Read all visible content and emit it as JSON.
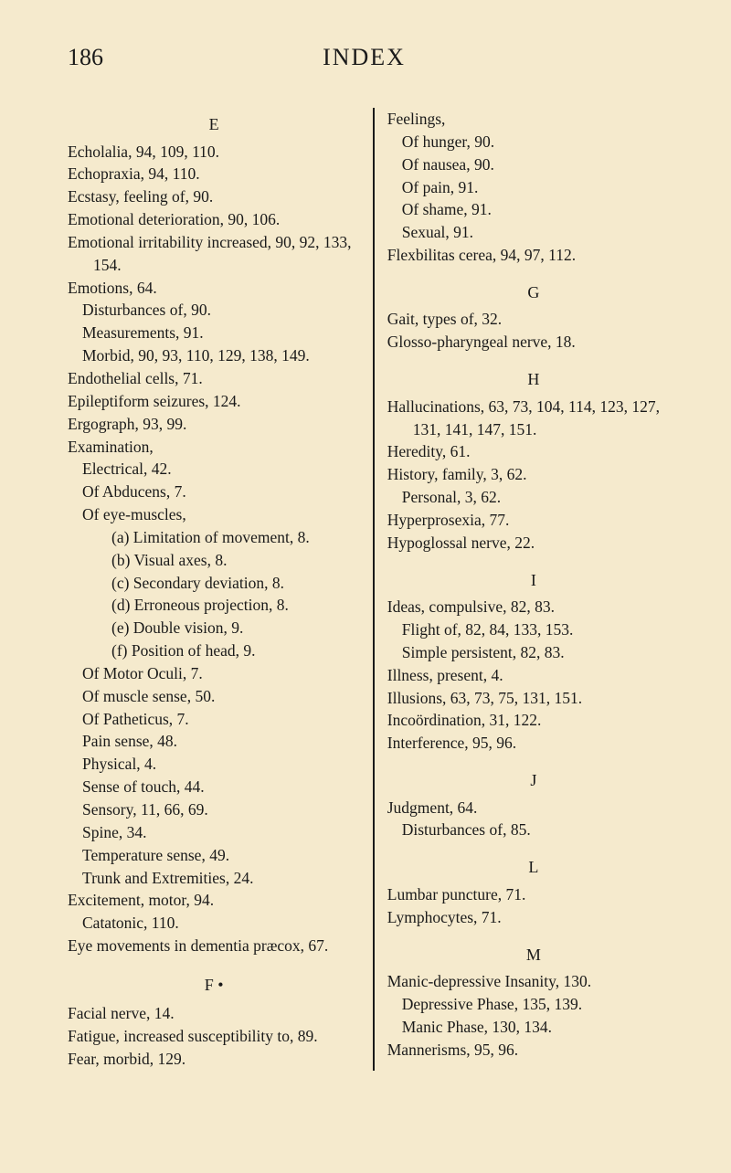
{
  "page": {
    "number": "186",
    "title": "INDEX",
    "background_color": "#f5eacd",
    "text_color": "#1a1a1a",
    "font_family": "Georgia, Times New Roman, serif",
    "body_fontsize": 17.5,
    "heading_fontsize": 26
  },
  "left": {
    "heading_E": "E",
    "entries_E": [
      {
        "t": "Echolalia, 94, 109, 110.",
        "l": 0
      },
      {
        "t": "Echopraxia, 94, 110.",
        "l": 0
      },
      {
        "t": "Ecstasy, feeling of, 90.",
        "l": 0
      },
      {
        "t": "Emotional deterioration, 90, 106.",
        "l": 0
      },
      {
        "t": "Emotional irritability increased, 90, 92, 133, 154.",
        "l": 0
      },
      {
        "t": "Emotions, 64.",
        "l": 0
      },
      {
        "t": "Disturbances of, 90.",
        "l": 1
      },
      {
        "t": "Measurements, 91.",
        "l": 1
      },
      {
        "t": "Morbid, 90, 93, 110, 129, 138, 149.",
        "l": 1
      },
      {
        "t": "Endothelial cells, 71.",
        "l": 0
      },
      {
        "t": "Epileptiform seizures, 124.",
        "l": 0
      },
      {
        "t": "Ergograph, 93, 99.",
        "l": 0
      },
      {
        "t": "Examination,",
        "l": 0
      },
      {
        "t": "Electrical, 42.",
        "l": 1
      },
      {
        "t": "Of Abducens, 7.",
        "l": 1
      },
      {
        "t": "Of eye-muscles,",
        "l": 1
      },
      {
        "t": "(a) Limitation of movement, 8.",
        "l": 2
      },
      {
        "t": "(b) Visual axes, 8.",
        "l": 2
      },
      {
        "t": "(c) Secondary deviation, 8.",
        "l": 2
      },
      {
        "t": "(d) Erroneous projection, 8.",
        "l": 2
      },
      {
        "t": "(e) Double vision, 9.",
        "l": 2
      },
      {
        "t": "(f) Position of head, 9.",
        "l": 2
      },
      {
        "t": "Of Motor Oculi, 7.",
        "l": 1
      },
      {
        "t": "Of muscle sense, 50.",
        "l": 1
      },
      {
        "t": "Of Patheticus, 7.",
        "l": 1
      },
      {
        "t": "Pain sense, 48.",
        "l": 1
      },
      {
        "t": "Physical, 4.",
        "l": 1
      },
      {
        "t": "Sense of touch, 44.",
        "l": 1
      },
      {
        "t": "Sensory, 11, 66, 69.",
        "l": 1
      },
      {
        "t": "Spine, 34.",
        "l": 1
      },
      {
        "t": "Temperature sense, 49.",
        "l": 1
      },
      {
        "t": "Trunk and Extremities, 24.",
        "l": 1
      },
      {
        "t": "Excitement, motor, 94.",
        "l": 0
      },
      {
        "t": "Catatonic, 110.",
        "l": 1
      },
      {
        "t": "Eye movements in dementia præcox, 67.",
        "l": 0
      }
    ],
    "heading_F": "F   •",
    "entries_F": [
      {
        "t": "Facial nerve, 14.",
        "l": 0
      },
      {
        "t": "Fatigue, increased susceptibility to, 89.",
        "l": 0
      },
      {
        "t": "Fear, morbid, 129.",
        "l": 0
      }
    ]
  },
  "right": {
    "entries_top": [
      {
        "t": "Feelings,",
        "l": 0
      },
      {
        "t": "Of hunger, 90.",
        "l": 1
      },
      {
        "t": "Of nausea, 90.",
        "l": 1
      },
      {
        "t": "Of pain, 91.",
        "l": 1
      },
      {
        "t": "Of shame, 91.",
        "l": 1
      },
      {
        "t": "Sexual, 91.",
        "l": 1
      },
      {
        "t": "Flexbilitas cerea, 94, 97, 112.",
        "l": 0
      }
    ],
    "heading_G": "G",
    "entries_G": [
      {
        "t": "Gait, types of, 32.",
        "l": 0
      },
      {
        "t": "Glosso-pharyngeal nerve, 18.",
        "l": 0
      }
    ],
    "heading_H": "H",
    "entries_H": [
      {
        "t": "Hallucinations, 63, 73, 104, 114, 123, 127, 131, 141, 147, 151.",
        "l": 0
      },
      {
        "t": "Heredity, 61.",
        "l": 0
      },
      {
        "t": "History, family, 3, 62.",
        "l": 0
      },
      {
        "t": "Personal, 3, 62.",
        "l": 1
      },
      {
        "t": "Hyperprosexia, 77.",
        "l": 0
      },
      {
        "t": "Hypoglossal nerve, 22.",
        "l": 0
      }
    ],
    "heading_I": "I",
    "entries_I": [
      {
        "t": "Ideas, compulsive, 82, 83.",
        "l": 0
      },
      {
        "t": "Flight of, 82, 84, 133, 153.",
        "l": 1
      },
      {
        "t": "Simple persistent, 82, 83.",
        "l": 1
      },
      {
        "t": "Illness, present, 4.",
        "l": 0
      },
      {
        "t": "Illusions, 63, 73, 75, 131, 151.",
        "l": 0
      },
      {
        "t": "Incoördination, 31, 122.",
        "l": 0
      },
      {
        "t": "Interference, 95, 96.",
        "l": 0
      }
    ],
    "heading_J": "J",
    "entries_J": [
      {
        "t": "Judgment, 64.",
        "l": 0
      },
      {
        "t": "Disturbances of, 85.",
        "l": 1
      }
    ],
    "heading_L": "L",
    "entries_L": [
      {
        "t": "Lumbar puncture, 71.",
        "l": 0
      },
      {
        "t": "Lymphocytes, 71.",
        "l": 0
      }
    ],
    "heading_M": "M",
    "entries_M": [
      {
        "t": "Manic-depressive Insanity, 130.",
        "l": 0
      },
      {
        "t": "Depressive Phase, 135, 139.",
        "l": 1
      },
      {
        "t": "Manic Phase, 130, 134.",
        "l": 1
      },
      {
        "t": "Mannerisms, 95, 96.",
        "l": 0
      }
    ]
  }
}
